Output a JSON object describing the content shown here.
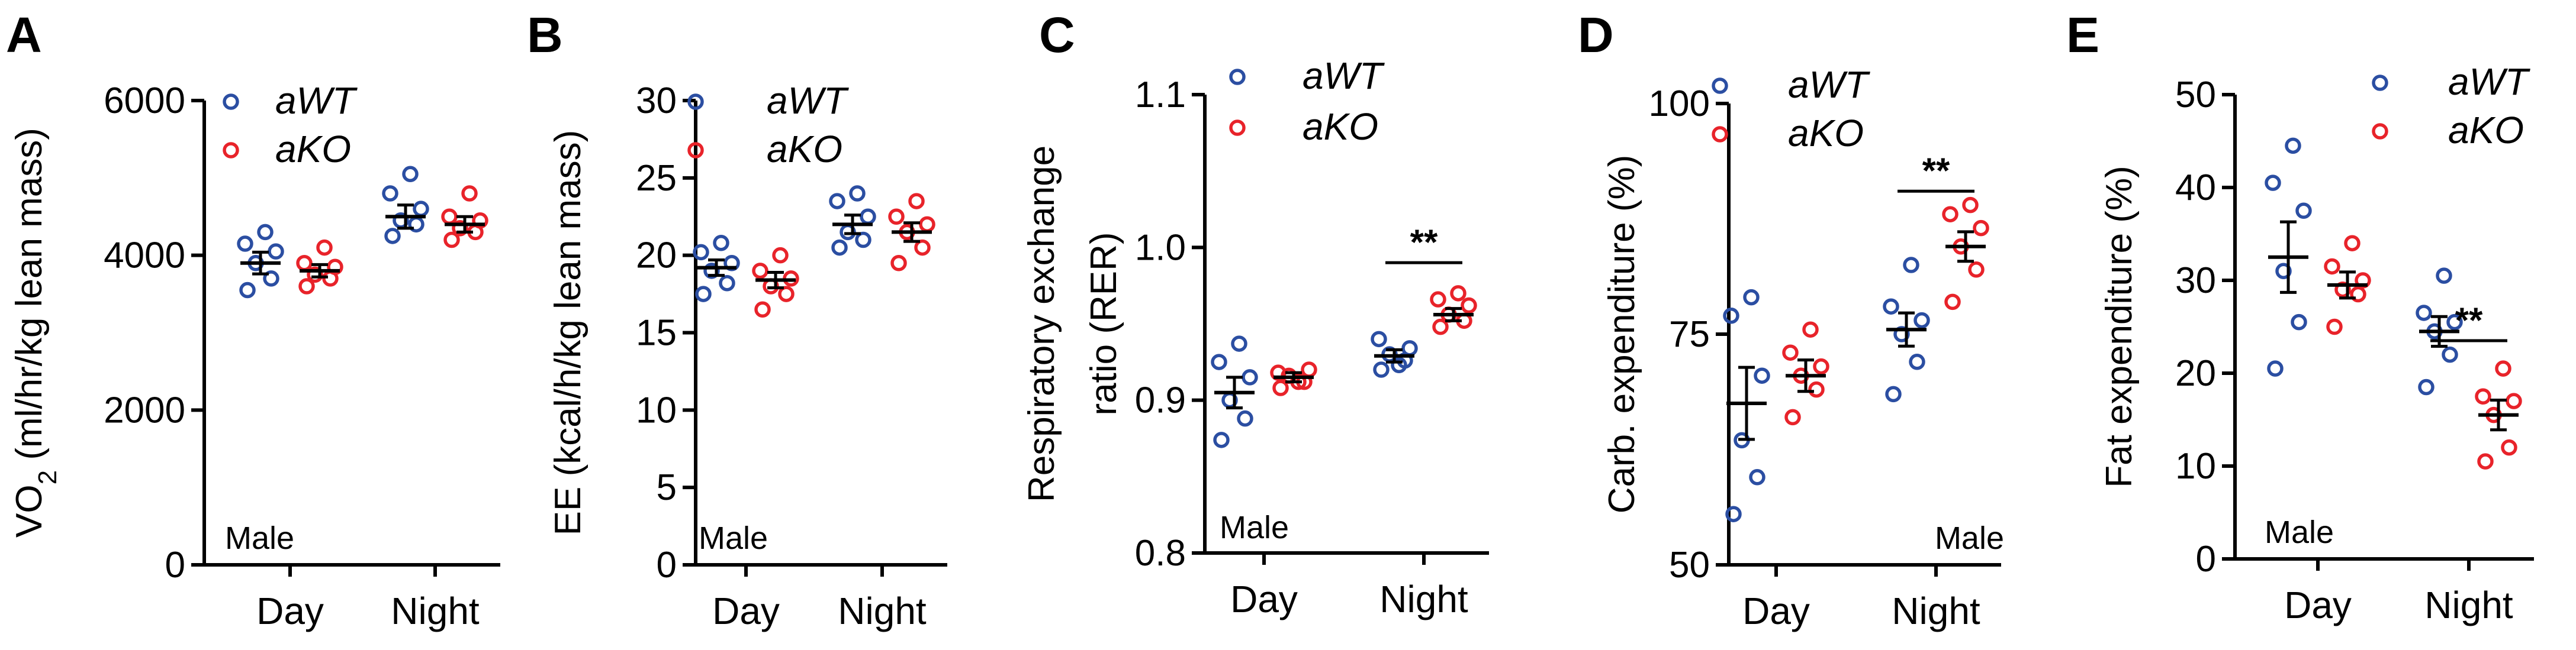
{
  "colors": {
    "wt": "#2b4ea2",
    "ko": "#e8232a",
    "axis": "#000000"
  },
  "groups_label": {
    "wt": "aWT",
    "ko": "aKO"
  },
  "chart_data": [
    {
      "letter": "A",
      "type": "scatter",
      "xcats": [
        "Day",
        "Night"
      ],
      "sex": "Male",
      "ylabel": "VO",
      "ylabel_sub": "2",
      "ylabel_post": " (ml/hr/kg lean mass)",
      "ylim": [
        0,
        6000
      ],
      "yticks": [
        "0",
        "2000",
        "4000",
        "6000"
      ],
      "wt": [
        [
          3550,
          3700,
          3900,
          4050,
          4150,
          4300
        ],
        [
          4250,
          4400,
          4450,
          4600,
          4800,
          5050
        ]
      ],
      "ko": [
        [
          3600,
          3700,
          3750,
          3850,
          3900,
          4100
        ],
        [
          4200,
          4300,
          4350,
          4450,
          4500,
          4800
        ]
      ],
      "wt_mean": [
        3900,
        4500
      ],
      "wt_sem": [
        140,
        150
      ],
      "ko_mean": [
        3800,
        4400
      ],
      "ko_sem": [
        80,
        100
      ],
      "sig": []
    },
    {
      "letter": "B",
      "type": "scatter",
      "xcats": [
        "Day",
        "Night"
      ],
      "sex": "Male",
      "ylabel": "EE (kcal/h/kg lean mass)",
      "ylabel_sub": "",
      "ylabel_post": "",
      "ylim": [
        0,
        30
      ],
      "yticks": [
        "0",
        "5",
        "10",
        "15",
        "20",
        "25",
        "30"
      ],
      "wt": [
        [
          17.5,
          18.2,
          19.0,
          19.5,
          20.2,
          20.8
        ],
        [
          20.5,
          21.0,
          21.5,
          22.5,
          23.5,
          24.0
        ]
      ],
      "ko": [
        [
          16.5,
          17.5,
          18.0,
          18.5,
          19.0,
          20.0
        ],
        [
          19.5,
          20.5,
          21.5,
          22.0,
          22.5,
          23.5
        ]
      ],
      "wt_mean": [
        19.2,
        22.0
      ],
      "wt_sem": [
        0.5,
        0.6
      ],
      "ko_mean": [
        18.4,
        21.5
      ],
      "ko_sem": [
        0.5,
        0.6
      ],
      "sig": []
    },
    {
      "letter": "C",
      "type": "scatter",
      "xcats": [
        "Day",
        "Night"
      ],
      "sex": "Male",
      "ylabel": "Respiratory exchange",
      "ylabel2": "ratio (RER)",
      "ylabel_sub": "",
      "ylabel_post": "",
      "ylim": [
        0.8,
        1.1
      ],
      "yticks": [
        "0.8",
        "0.9",
        "1.0",
        "1.1"
      ],
      "wt": [
        [
          0.874,
          0.888,
          0.9,
          0.915,
          0.925,
          0.937
        ],
        [
          0.92,
          0.926,
          0.93,
          0.934,
          0.94,
          0.923
        ]
      ],
      "ko": [
        [
          0.908,
          0.912,
          0.916,
          0.92,
          0.918,
          0.912
        ],
        [
          0.948,
          0.952,
          0.956,
          0.962,
          0.966,
          0.97
        ]
      ],
      "wt_mean": [
        0.905,
        0.929
      ],
      "wt_sem": [
        0.01,
        0.004
      ],
      "ko_mean": [
        0.915,
        0.956
      ],
      "ko_sem": [
        0.003,
        0.004
      ],
      "sig": [
        {
          "cat": 1,
          "y": 0.99,
          "text": "**"
        }
      ]
    },
    {
      "letter": "D",
      "type": "scatter",
      "xcats": [
        "Day",
        "Night"
      ],
      "sex": "Male",
      "ylabel": "Carb. expenditure (%)",
      "ylabel_sub": "",
      "ylabel_post": "",
      "ylim": [
        50,
        100
      ],
      "yticks": [
        "50",
        "75",
        "100"
      ],
      "wt": [
        [
          55.5,
          59.5,
          63.5,
          70.5,
          77.0,
          79.0
        ],
        [
          68.5,
          72.0,
          75.0,
          76.5,
          78.0,
          82.5
        ]
      ],
      "ko": [
        [
          66.0,
          69.0,
          70.5,
          71.5,
          73.0,
          75.5
        ],
        [
          78.5,
          82.0,
          84.5,
          86.5,
          88.0,
          89.0
        ]
      ],
      "wt_mean": [
        67.5,
        75.5
      ],
      "wt_sem": [
        3.9,
        1.8
      ],
      "ko_mean": [
        70.5,
        84.5
      ],
      "ko_sem": [
        1.7,
        1.6
      ],
      "sig": [
        {
          "cat": 1,
          "y": 90.5,
          "text": "**"
        }
      ]
    },
    {
      "letter": "E",
      "type": "scatter",
      "xcats": [
        "Day",
        "Night"
      ],
      "sex": "Male",
      "ylabel": "Fat expenditure (%)",
      "ylabel_sub": "",
      "ylabel_post": "",
      "ylim": [
        0,
        50
      ],
      "yticks": [
        "0",
        "10",
        "20",
        "30",
        "40",
        "50"
      ],
      "wt": [
        [
          20.5,
          25.5,
          31.0,
          37.5,
          40.5,
          44.5
        ],
        [
          18.5,
          22.0,
          24.5,
          25.5,
          26.5,
          30.5
        ]
      ],
      "ko": [
        [
          25.0,
          28.5,
          29.0,
          30.0,
          31.5,
          34.0
        ],
        [
          10.5,
          12.0,
          15.5,
          17.0,
          17.5,
          20.5
        ]
      ],
      "wt_mean": [
        32.5,
        24.5
      ],
      "wt_sem": [
        3.8,
        1.6
      ],
      "ko_mean": [
        29.5,
        15.5
      ],
      "ko_sem": [
        1.4,
        1.6
      ],
      "sig": [
        {
          "cat": 1,
          "y": 23.5,
          "text": "**"
        }
      ]
    }
  ]
}
